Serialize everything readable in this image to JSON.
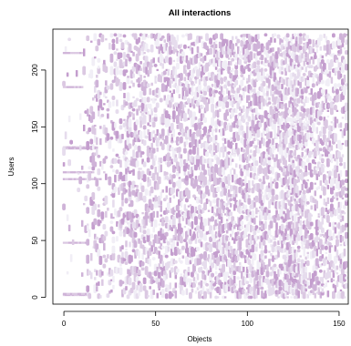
{
  "chart_data": {
    "type": "heatmap",
    "title": "All interactions",
    "xlabel": "Objects",
    "ylabel": "Users",
    "xlim": [
      -6,
      155
    ],
    "ylim": [
      -6,
      236
    ],
    "xticks": [
      0,
      50,
      100,
      150
    ],
    "yticks": [
      0,
      50,
      100,
      150,
      200
    ],
    "n_users": 232,
    "n_objects": 155,
    "seed": 7,
    "colors": [
      "#f1eef6",
      "#e6dced",
      "#dbc8e2",
      "#cfb3d8",
      "#c49ece"
    ],
    "column_density": [
      {
        "from": 0,
        "to": 12,
        "density": 0.025
      },
      {
        "from": 13,
        "to": 30,
        "density": 0.18
      },
      {
        "from": 31,
        "to": 48,
        "density": 0.32
      },
      {
        "from": 49,
        "to": 66,
        "density": 0.38
      },
      {
        "from": 67,
        "to": 84,
        "density": 0.46
      },
      {
        "from": 85,
        "to": 102,
        "density": 0.48
      },
      {
        "from": 103,
        "to": 118,
        "density": 0.44
      },
      {
        "from": 119,
        "to": 132,
        "density": 0.62
      },
      {
        "from": 133,
        "to": 154,
        "density": 0.36
      }
    ],
    "user_bands": [
      {
        "user": 2,
        "from": 0,
        "to": 14
      },
      {
        "user": 3,
        "from": 0,
        "to": 14
      },
      {
        "user": 48,
        "from": 0,
        "to": 12
      },
      {
        "user": 104,
        "from": 0,
        "to": 20
      },
      {
        "user": 110,
        "from": 0,
        "to": 16
      },
      {
        "user": 132,
        "from": 0,
        "to": 18
      },
      {
        "user": 131,
        "from": 0,
        "to": 18
      },
      {
        "user": 185,
        "from": 0,
        "to": 10
      },
      {
        "user": 215,
        "from": 0,
        "to": 10
      }
    ]
  }
}
